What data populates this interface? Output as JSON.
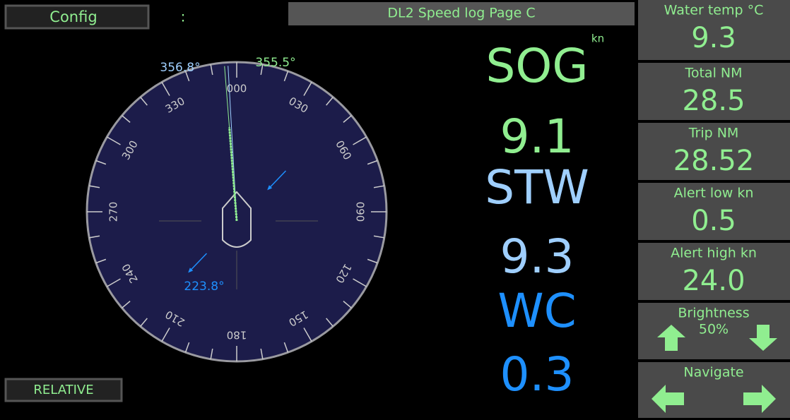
{
  "header": {
    "config": "Config",
    "status": ":",
    "title": "DL2 Speed log Page C"
  },
  "compass": {
    "labels": [
      "000",
      "030",
      "060",
      "090",
      "120",
      "150",
      "180",
      "210",
      "240",
      "270",
      "300",
      "330"
    ],
    "heading": "356.8°",
    "course": "355.5°",
    "current": "223.8°",
    "mode": "RELATIVE"
  },
  "readouts": {
    "unit": "kn",
    "items": [
      {
        "label": "SOG",
        "value": "9.1"
      },
      {
        "label": "STW",
        "value": "9.3"
      },
      {
        "label": "WC",
        "value": "0.3"
      }
    ]
  },
  "panels": [
    {
      "label": "Water temp °C",
      "value": "9.3"
    },
    {
      "label": "Total NM",
      "value": "28.5"
    },
    {
      "label": "Trip NM",
      "value": "28.52"
    },
    {
      "label": "Alert low kn",
      "value": "0.5"
    },
    {
      "label": "Alert high kn",
      "value": "24.0"
    },
    {
      "label": "Brightness",
      "value": "50%"
    },
    {
      "label": "Navigate"
    }
  ]
}
